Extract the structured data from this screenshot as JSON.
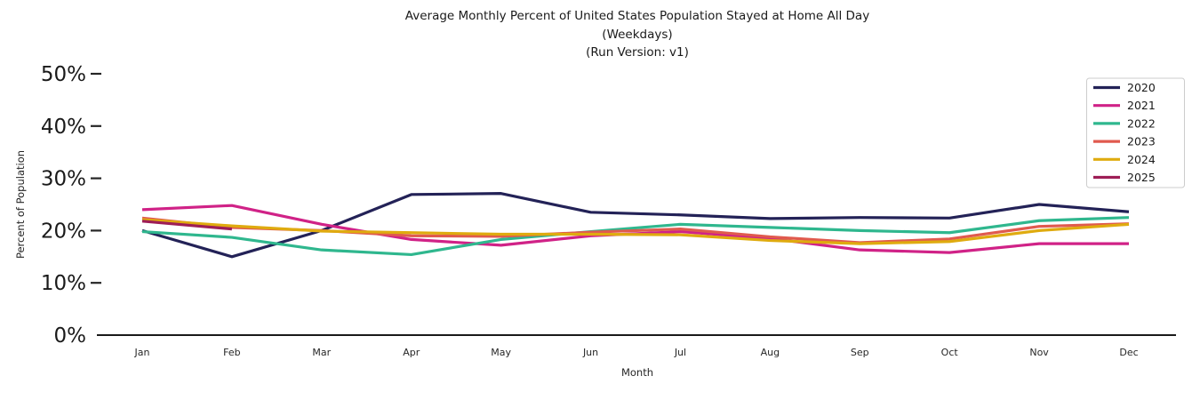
{
  "title": {
    "line1": "Average Monthly Percent of United States Population Stayed at Home All Day",
    "line2": "(Weekdays)",
    "line3": "(Run Version: v1)"
  },
  "chart_data": {
    "type": "line",
    "x": [
      "Jan",
      "Feb",
      "Mar",
      "Apr",
      "May",
      "Jun",
      "Jul",
      "Aug",
      "Sep",
      "Oct",
      "Nov",
      "Dec"
    ],
    "xlabel": "Month",
    "ylabel": "Percent of Population",
    "ylim": [
      0,
      50
    ],
    "ytick_labels": [
      "0%",
      "10%",
      "20%",
      "30%",
      "40%",
      "50%"
    ],
    "ytick_values": [
      0,
      10,
      20,
      30,
      40,
      50
    ],
    "grid": false,
    "legend_position": "upper right",
    "series": [
      {
        "name": "2020",
        "color": "#232257",
        "values": [
          20.0,
          15.0,
          20.0,
          26.9,
          27.1,
          23.5,
          23.0,
          22.3,
          22.5,
          22.4,
          25.0,
          23.6
        ]
      },
      {
        "name": "2021",
        "color": "#d02287",
        "values": [
          24.0,
          24.8,
          21.2,
          18.3,
          17.2,
          19.0,
          19.8,
          18.5,
          16.3,
          15.8,
          17.5,
          17.5
        ]
      },
      {
        "name": "2022",
        "color": "#2fb78e",
        "values": [
          19.8,
          18.7,
          16.3,
          15.4,
          18.3,
          19.8,
          21.2,
          20.6,
          20.0,
          19.6,
          21.9,
          22.5
        ]
      },
      {
        "name": "2023",
        "color": "#e05a4e",
        "values": [
          22.4,
          20.6,
          20.0,
          19.0,
          18.9,
          19.7,
          20.3,
          18.8,
          17.7,
          18.4,
          20.8,
          21.3
        ]
      },
      {
        "name": "2024",
        "color": "#dfab0f",
        "values": [
          22.1,
          20.9,
          19.9,
          19.6,
          19.3,
          19.3,
          19.2,
          18.1,
          17.5,
          17.9,
          20.0,
          21.2
        ]
      },
      {
        "name": "2025",
        "color": "#9e1e56",
        "values": [
          21.8,
          20.3,
          null,
          null,
          null,
          null,
          null,
          null,
          null,
          null,
          null,
          null
        ]
      }
    ]
  }
}
